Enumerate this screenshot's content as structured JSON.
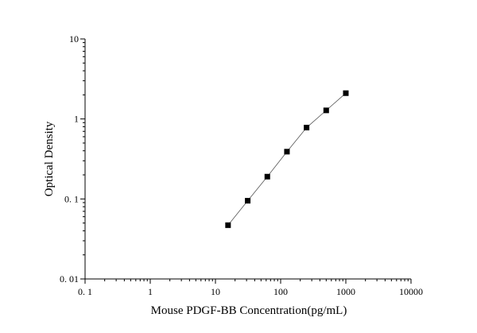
{
  "chart_data": {
    "type": "scatter",
    "title": "",
    "xlabel": "Mouse PDGF-BB Concentration(pg/mL)",
    "ylabel": "Optical Density",
    "x_scale": "log",
    "y_scale": "log",
    "xlim": [
      0.1,
      10000
    ],
    "ylim": [
      0.01,
      10
    ],
    "x_ticks": [
      {
        "value": 0.1,
        "label": "0. 1"
      },
      {
        "value": 1,
        "label": "1"
      },
      {
        "value": 10,
        "label": "10"
      },
      {
        "value": 100,
        "label": "100"
      },
      {
        "value": 1000,
        "label": "1000"
      },
      {
        "value": 10000,
        "label": "10000"
      }
    ],
    "y_ticks": [
      {
        "value": 0.01,
        "label": "0. 01"
      },
      {
        "value": 0.1,
        "label": "0. 1"
      },
      {
        "value": 1,
        "label": "1"
      },
      {
        "value": 10,
        "label": "10"
      }
    ],
    "grid": false,
    "legend": "none",
    "series": [
      {
        "marker": "square",
        "line": true,
        "color": "#000000",
        "points": [
          {
            "x": 15.6,
            "y": 0.047
          },
          {
            "x": 31.25,
            "y": 0.095
          },
          {
            "x": 62.5,
            "y": 0.19
          },
          {
            "x": 125,
            "y": 0.39
          },
          {
            "x": 250,
            "y": 0.78
          },
          {
            "x": 500,
            "y": 1.28
          },
          {
            "x": 1000,
            "y": 2.1
          }
        ]
      }
    ]
  }
}
